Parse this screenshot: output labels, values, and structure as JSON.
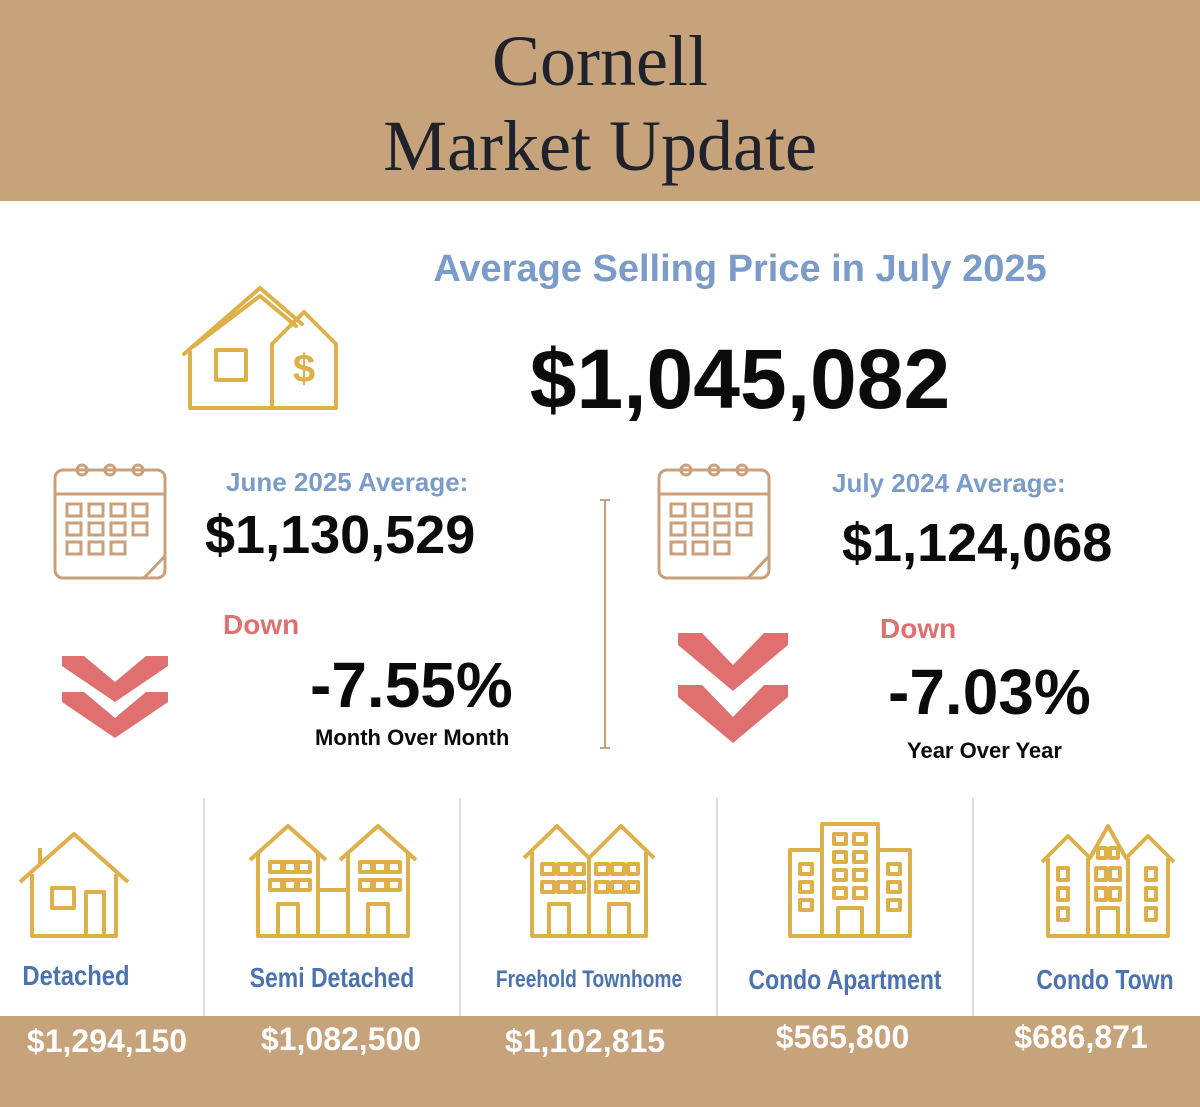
{
  "header": {
    "title_line1": "Cornell",
    "title_line2": "Market Update"
  },
  "summary": {
    "heading": "Average Selling Price in July 2025",
    "price": "$1,045,082"
  },
  "comparisons": [
    {
      "label": "June 2025 Average:",
      "value": "$1,130,529",
      "direction": "Down",
      "change": "-7.55%",
      "caption": "Month Over Month"
    },
    {
      "label": "July 2024 Average:",
      "value": "$1,124,068",
      "direction": "Down",
      "change": "-7.03%",
      "caption": "Year Over Year"
    }
  ],
  "categories": [
    {
      "name": "Detached",
      "price": "$1,294,150",
      "icon": "detached-house-icon"
    },
    {
      "name": "Semi Detached",
      "price": "$1,082,500",
      "icon": "semi-detached-icon"
    },
    {
      "name": "Freehold Townhome",
      "price": "$1,102,815",
      "icon": "townhome-icon"
    },
    {
      "name": "Condo Apartment",
      "price": "$565,800",
      "icon": "apartment-building-icon"
    },
    {
      "name": "Condo Town",
      "price": "$686,871",
      "icon": "condo-town-icon"
    }
  ],
  "colors": {
    "header_bg": "#c6a37b",
    "accent_blue": "#7b9bc9",
    "category_blue": "#4a73b0",
    "icon_gold": "#deb04a",
    "down_red": "#e07070",
    "calendar_brown": "#c9a07a"
  }
}
